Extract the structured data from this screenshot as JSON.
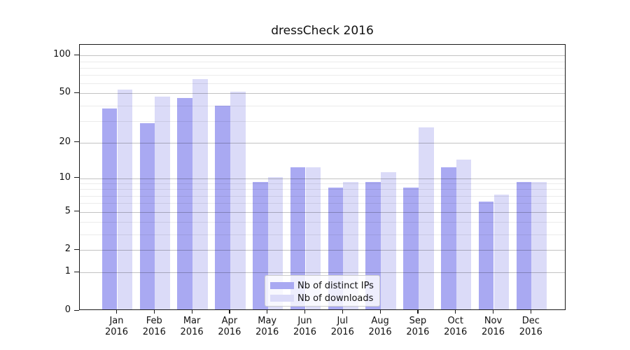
{
  "figure": {
    "title": "dressCheck 2016"
  },
  "chart_data": {
    "type": "bar",
    "title": "dressCheck 2016",
    "categories": [
      "Jan 2016",
      "Feb 2016",
      "Mar 2016",
      "Apr 2016",
      "May 2016",
      "Jun 2016",
      "Jul 2016",
      "Aug 2016",
      "Sep 2016",
      "Oct 2016",
      "Nov 2016",
      "Dec 2016"
    ],
    "category_line1": [
      "Jan",
      "Feb",
      "Mar",
      "Apr",
      "May",
      "Jun",
      "Jul",
      "Aug",
      "Sep",
      "Oct",
      "Nov",
      "Dec"
    ],
    "category_line2": [
      "2016",
      "2016",
      "2016",
      "2016",
      "2016",
      "2016",
      "2016",
      "2016",
      "2016",
      "2016",
      "2016",
      "2016"
    ],
    "series": [
      {
        "name": "Nb of distinct IPs",
        "color": "#a9a9f2",
        "values": [
          37,
          28,
          45,
          39,
          9,
          12,
          8,
          9,
          8,
          12,
          6,
          9
        ]
      },
      {
        "name": "Nb of downloads",
        "color": "#dbdbf8",
        "values": [
          52,
          46,
          63,
          50,
          10,
          12,
          9,
          11,
          26,
          14,
          7,
          9
        ]
      }
    ],
    "xlabel": "",
    "ylabel": "",
    "y_axis": {
      "scale": "symlog(log1p)",
      "tick_labels": [
        "100",
        "50",
        "20",
        "10",
        "5",
        "2",
        "1",
        "0"
      ],
      "tick_values": [
        100,
        50,
        20,
        10,
        5,
        2,
        1,
        0
      ],
      "minor_tick_values": [
        3,
        4,
        6,
        7,
        8,
        9,
        30,
        40,
        60,
        70,
        80,
        90
      ],
      "ylim": [
        0,
        122
      ]
    },
    "grid": "on",
    "legend_position": "bottom-center"
  },
  "colors": {
    "distinct_ips": "#a9a9f2",
    "downloads": "#dbdbf8",
    "grid_major": "rgba(0,0,0,0.24)",
    "grid_minor": "rgba(0,0,0,0.08)",
    "spine": "#1a1a1a",
    "text": "#111111"
  }
}
